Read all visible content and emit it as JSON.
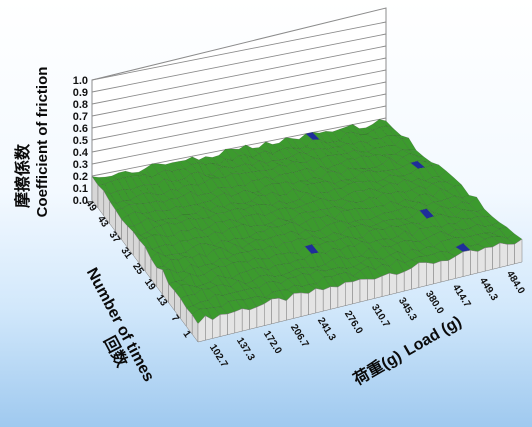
{
  "chart_data": {
    "type": "surface-3d",
    "z_axis": {
      "title_jp": "摩擦係数",
      "title_en": "Coefficient of friction",
      "ticks": [
        "0.0",
        "0.1",
        "0.2",
        "0.3",
        "0.4",
        "0.5",
        "0.6",
        "0.7",
        "0.8",
        "0.9",
        "1.0"
      ],
      "range": [
        0,
        1.0
      ]
    },
    "y_axis": {
      "title_jp": "回数",
      "title_en": "Number of times",
      "ticks": [
        "1",
        "7",
        "13",
        "19",
        "25",
        "31",
        "37",
        "43",
        "49"
      ]
    },
    "x_axis": {
      "title_jp": "荷重(g)",
      "title_en": "Load (g)",
      "ticks": [
        "102.7",
        "137.3",
        "172.0",
        "206.7",
        "241.3",
        "276.0",
        "310.7",
        "345.3",
        "380.0",
        "414.7",
        "449.3",
        "484.0"
      ]
    },
    "color_bands": [
      {
        "range": [
          0.0,
          0.2
        ],
        "color": "#3c9a2e"
      },
      {
        "range": [
          0.2,
          0.3
        ],
        "color": "#1e2e9a"
      },
      {
        "range": [
          0.3,
          0.4
        ],
        "color": "#c9c23a"
      }
    ],
    "surface": {
      "columns": 44,
      "rows": 18,
      "base_level": 0.18,
      "texture_amplitude": 0.028
    }
  }
}
